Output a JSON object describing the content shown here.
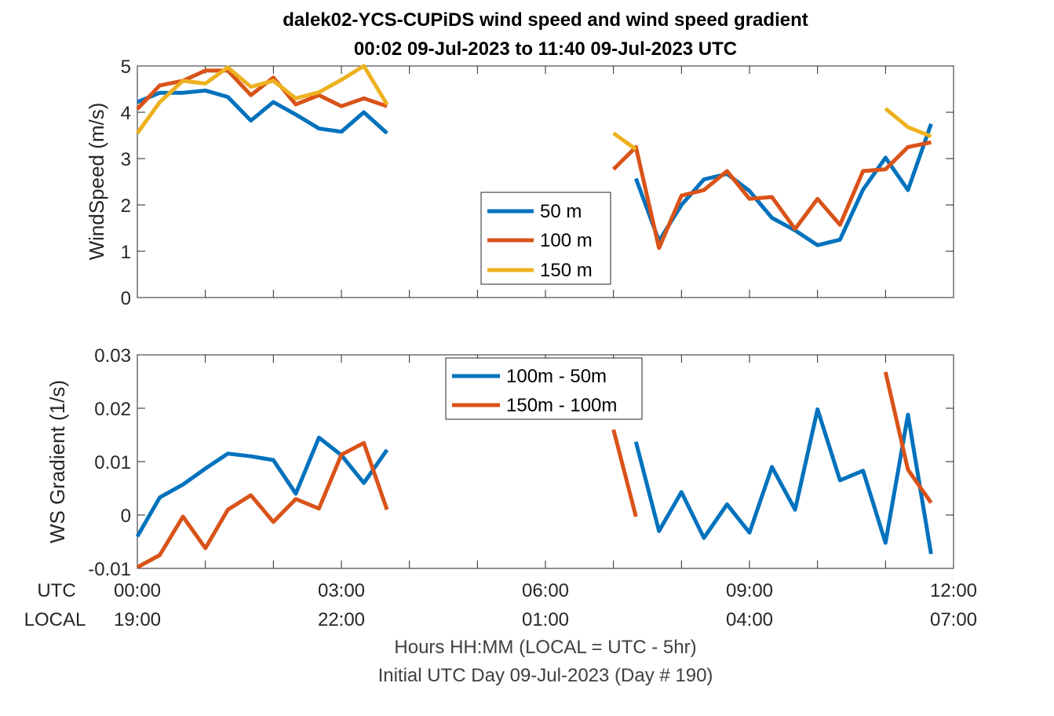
{
  "figure": {
    "title_line1": "dalek02-YCS-CUPiDS  wind speed and wind speed gradient",
    "title_line2": "00:02 09-Jul-2023 to 11:40 09-Jul-2023  UTC",
    "xlabel_line1": "Hours HH:MM  (LOCAL = UTC - 5hr)",
    "xlabel_line2": "Initial UTC Day 09-Jul-2023 (Day # 190)",
    "row_label_utc": "UTC",
    "row_label_local": "LOCAL",
    "utc_ticks": [
      "00:00",
      "03:00",
      "06:00",
      "09:00",
      "12:00"
    ],
    "local_ticks": [
      "19:00",
      "22:00",
      "01:00",
      "04:00",
      "07:00"
    ]
  },
  "chart_data": [
    {
      "type": "line",
      "ylabel": "WindSpeed (m/s)",
      "xlim": [
        0,
        12
      ],
      "ylim": [
        0,
        5
      ],
      "yticks": [
        "0",
        "1",
        "2",
        "3",
        "4",
        "5"
      ],
      "legend_position": "center",
      "series": [
        {
          "name": "50 m",
          "color": "#0072BD",
          "segments": [
            {
              "x": [
                0.0,
                0.33,
                0.67,
                1.0,
                1.33,
                1.67,
                2.0,
                2.33,
                2.67,
                3.0,
                3.33,
                3.67
              ],
              "y": [
                4.22,
                4.42,
                4.42,
                4.47,
                4.33,
                3.82,
                4.22,
                3.95,
                3.65,
                3.58,
                4.0,
                3.55
              ]
            },
            {
              "x": [
                7.33,
                7.67,
                8.0,
                8.33,
                8.67,
                9.0,
                9.33,
                9.67,
                10.0,
                10.33,
                10.67,
                11.0,
                11.33,
                11.67
              ],
              "y": [
                2.57,
                1.22,
                2.0,
                2.55,
                2.67,
                2.3,
                1.72,
                1.45,
                1.13,
                1.25,
                2.33,
                3.02,
                2.32,
                3.75
              ]
            }
          ]
        },
        {
          "name": "100 m",
          "color": "#D95319",
          "segments": [
            {
              "x": [
                0.0,
                0.33,
                0.67,
                1.0,
                1.33,
                1.67,
                2.0,
                2.33,
                2.67,
                3.0,
                3.33,
                3.67
              ],
              "y": [
                4.07,
                4.58,
                4.68,
                4.9,
                4.9,
                4.37,
                4.75,
                4.17,
                4.37,
                4.13,
                4.3,
                4.13
              ]
            },
            {
              "x": [
                7.0,
                7.33,
                7.67,
                8.0,
                8.33,
                8.67,
                9.0,
                9.33,
                9.67,
                10.0,
                10.33,
                10.67,
                11.0,
                11.33,
                11.67
              ],
              "y": [
                2.77,
                3.25,
                1.07,
                2.2,
                2.32,
                2.73,
                2.13,
                2.17,
                1.48,
                2.13,
                1.57,
                2.73,
                2.77,
                3.25,
                3.35
              ]
            }
          ]
        },
        {
          "name": "150 m",
          "color": "#EDB120",
          "segments": [
            {
              "x": [
                0.0,
                0.33,
                0.67,
                1.0,
                1.33,
                1.67,
                2.0,
                2.33,
                2.67,
                3.0,
                3.33,
                3.67
              ],
              "y": [
                3.55,
                4.22,
                4.68,
                4.62,
                4.97,
                4.55,
                4.68,
                4.3,
                4.43,
                4.7,
                5.0,
                4.17
              ]
            },
            {
              "x": [
                7.0,
                7.33
              ],
              "y": [
                3.55,
                3.2
              ]
            },
            {
              "x": [
                11.0,
                11.33,
                11.67
              ],
              "y": [
                4.08,
                3.68,
                3.48
              ]
            }
          ]
        }
      ]
    },
    {
      "type": "line",
      "ylabel": "WS Gradient (1/s)",
      "xlim": [
        0,
        12
      ],
      "ylim": [
        -0.01,
        0.03
      ],
      "yticks": [
        "-0.01",
        "0",
        "0.01",
        "0.02",
        "0.03"
      ],
      "legend_position": "top-center",
      "series": [
        {
          "name": "100m - 50m",
          "color": "#0072BD",
          "segments": [
            {
              "x": [
                0.0,
                0.33,
                0.67,
                1.0,
                1.33,
                1.67,
                2.0,
                2.33,
                2.67,
                3.0,
                3.33,
                3.67
              ],
              "y": [
                -0.004,
                0.0033,
                0.0057,
                0.0087,
                0.0115,
                0.011,
                0.0103,
                0.004,
                0.0145,
                0.0112,
                0.006,
                0.0122
              ]
            },
            {
              "x": [
                7.33,
                7.67,
                8.0,
                8.33,
                8.67,
                9.0,
                9.33,
                9.67,
                10.0,
                10.33,
                10.67,
                11.0,
                11.33,
                11.67
              ],
              "y": [
                0.0137,
                -0.003,
                0.0043,
                -0.0043,
                0.002,
                -0.0033,
                0.009,
                0.001,
                0.0198,
                0.0065,
                0.0083,
                -0.0052,
                0.0188,
                -0.0073
              ]
            }
          ]
        },
        {
          "name": "150m - 100m",
          "color": "#D95319",
          "segments": [
            {
              "x": [
                0.0,
                0.33,
                0.67,
                1.0,
                1.33,
                1.67,
                2.0,
                2.33,
                2.67,
                3.0,
                3.33,
                3.67
              ],
              "y": [
                -0.0098,
                -0.0075,
                -0.0003,
                -0.0062,
                0.001,
                0.0037,
                -0.0013,
                0.003,
                0.0012,
                0.0113,
                0.0135,
                0.001
              ]
            },
            {
              "x": [
                7.0,
                7.33
              ],
              "y": [
                0.016,
                -0.0003
              ]
            },
            {
              "x": [
                11.0,
                11.33,
                11.67
              ],
              "y": [
                0.0268,
                0.0085,
                0.0023
              ]
            }
          ]
        }
      ]
    }
  ]
}
